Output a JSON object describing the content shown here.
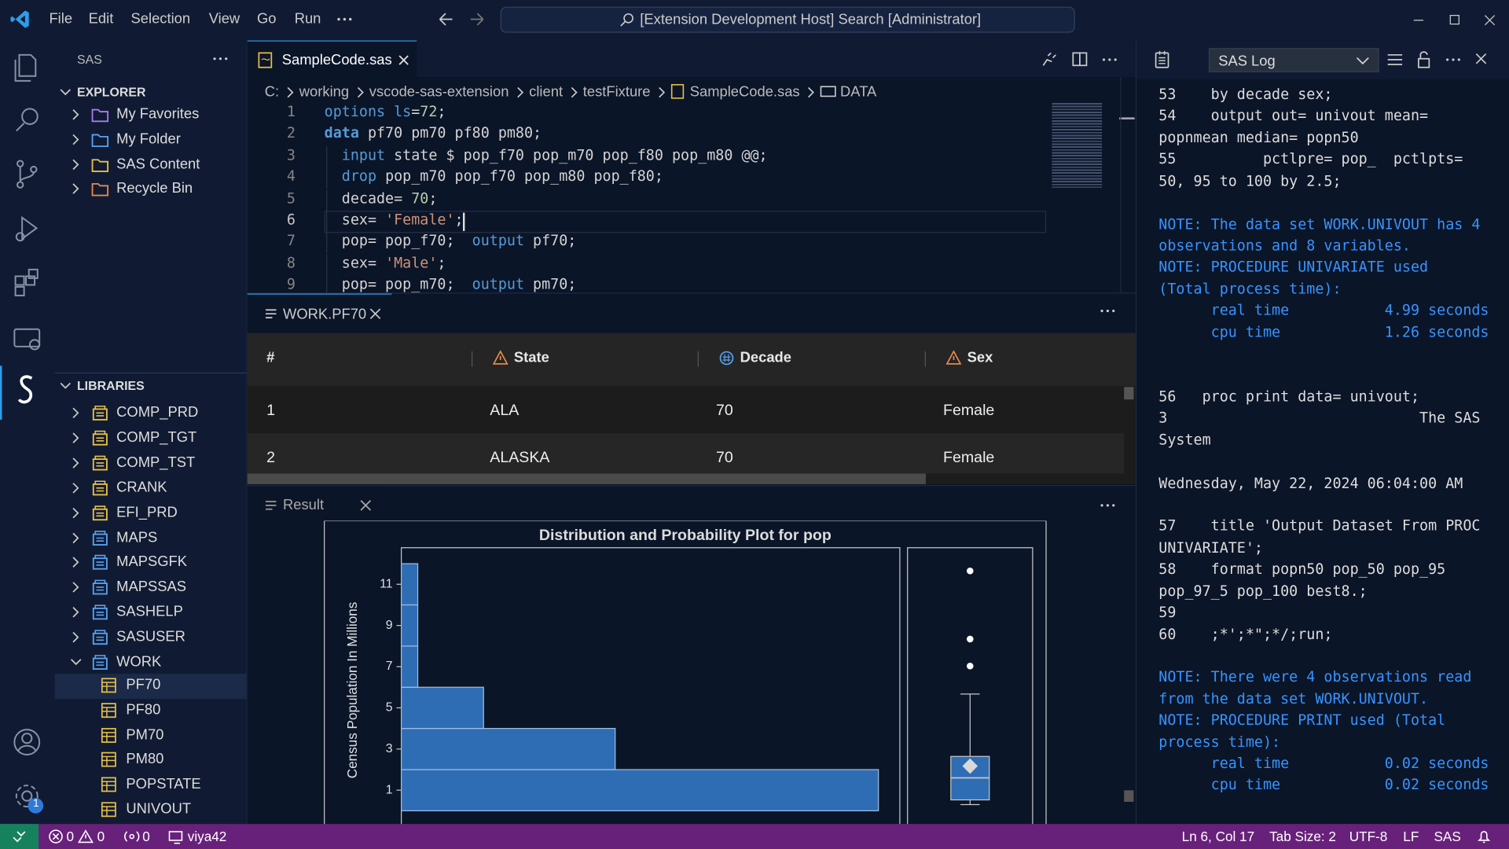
{
  "menu": [
    "File",
    "Edit",
    "Selection",
    "View",
    "Go",
    "Run"
  ],
  "search": "[Extension Development Host] Search [Administrator]",
  "sidebar": {
    "title": "SAS",
    "explorer": {
      "title": "EXPLORER",
      "items": [
        {
          "name": "My Favorites",
          "color": "#a67cf0"
        },
        {
          "name": "My Folder",
          "color": "#5aa2f0"
        },
        {
          "name": "SAS Content",
          "color": "#e8c04a"
        },
        {
          "name": "Recycle Bin",
          "color": "#e8884a"
        }
      ]
    },
    "libraries": {
      "title": "LIBRARIES",
      "items": [
        {
          "name": "COMP_PRD",
          "color": "#e8c04a"
        },
        {
          "name": "COMP_TGT",
          "color": "#e8c04a"
        },
        {
          "name": "COMP_TST",
          "color": "#e8c04a"
        },
        {
          "name": "CRANK",
          "color": "#e8c04a"
        },
        {
          "name": "EFI_PRD",
          "color": "#e8c04a"
        },
        {
          "name": "MAPS",
          "color": "#5aa2f0"
        },
        {
          "name": "MAPSGFK",
          "color": "#5aa2f0"
        },
        {
          "name": "MAPSSAS",
          "color": "#5aa2f0"
        },
        {
          "name": "SASHELP",
          "color": "#5aa2f0"
        },
        {
          "name": "SASUSER",
          "color": "#5aa2f0"
        }
      ],
      "work": {
        "name": "WORK",
        "color": "#5aa2f0",
        "tables": [
          "PF70",
          "PF80",
          "PM70",
          "PM80",
          "POPSTATE",
          "UNIVOUT"
        ]
      }
    }
  },
  "settings_badge": 1,
  "editor": {
    "tab": "SampleCode.sas",
    "breadcrumbs": [
      "C:",
      "working",
      "vscode-sas-extension",
      "client",
      "testFixture",
      "SampleCode.sas",
      "DATA"
    ],
    "active_line": 6,
    "lines": [
      {
        "n": 1,
        "tokens": [
          {
            "t": "options",
            "k": "keyword"
          },
          {
            "t": " ",
            "k": "text"
          },
          {
            "t": "ls",
            "k": "keyword"
          },
          {
            "t": "=",
            "k": "text"
          },
          {
            "t": "72",
            "k": "number"
          },
          {
            "t": ";",
            "k": "text"
          }
        ]
      },
      {
        "n": 2,
        "tokens": [
          {
            "t": "data",
            "k": "step"
          },
          {
            "t": " pf70 pm70 pf80 pm80;",
            "k": "text"
          }
        ]
      },
      {
        "n": 3,
        "tokens": [
          {
            "t": "  input",
            "k": "keyword"
          },
          {
            "t": " state $ pop_f70 pop_m70 pop_f80 pop_m80 @@;",
            "k": "text"
          }
        ]
      },
      {
        "n": 4,
        "tokens": [
          {
            "t": "  drop",
            "k": "keyword"
          },
          {
            "t": " pop_m70 pop_f70 pop_m80 pop_f80;",
            "k": "text"
          }
        ]
      },
      {
        "n": 5,
        "tokens": [
          {
            "t": "  decade= ",
            "k": "text"
          },
          {
            "t": "70",
            "k": "number"
          },
          {
            "t": ";",
            "k": "text"
          }
        ]
      },
      {
        "n": 6,
        "tokens": [
          {
            "t": "  sex= ",
            "k": "text"
          },
          {
            "t": "'Female'",
            "k": "string"
          },
          {
            "t": ";",
            "k": "text"
          }
        ]
      },
      {
        "n": 7,
        "tokens": [
          {
            "t": "  pop= pop_f70;  ",
            "k": "text"
          },
          {
            "t": "output",
            "k": "keyword"
          },
          {
            "t": " pf70;",
            "k": "text"
          }
        ]
      },
      {
        "n": 8,
        "tokens": [
          {
            "t": "  sex= ",
            "k": "text"
          },
          {
            "t": "'Male'",
            "k": "string"
          },
          {
            "t": ";",
            "k": "text"
          }
        ]
      },
      {
        "n": 9,
        "tokens": [
          {
            "t": "  pop= pop_m70;  ",
            "k": "text"
          },
          {
            "t": "output",
            "k": "keyword"
          },
          {
            "t": " pm70;",
            "k": "text"
          }
        ]
      }
    ]
  },
  "table": {
    "tab": "WORK.PF70",
    "columns": [
      {
        "name": "#",
        "type": "index"
      },
      {
        "name": "State",
        "type": "char"
      },
      {
        "name": "Decade",
        "type": "num"
      },
      {
        "name": "Sex",
        "type": "char"
      }
    ],
    "rows": [
      [
        1,
        "ALA",
        70,
        "Female"
      ],
      [
        2,
        "ALASKA",
        70,
        "Female"
      ]
    ]
  },
  "result": {
    "tab": "Result"
  },
  "chart_data": {
    "type": "histogram",
    "orientation": "horizontal",
    "title": "Distribution and Probability Plot for pop",
    "ylabel": "Census Population In Millions",
    "bins": [
      0,
      2,
      4,
      6,
      8,
      10,
      12
    ],
    "counts": [
      29,
      13,
      5,
      1,
      1,
      1
    ],
    "color": "#2e6db4",
    "ylim": [
      -0.5,
      12.8
    ],
    "yticks": [
      1,
      3,
      5,
      7,
      9,
      11
    ],
    "xlim": [
      0,
      30.3
    ],
    "box": {
      "whisker_low": 0.3,
      "q1": 0.53,
      "median": 1.6,
      "mean": 2.17,
      "q3": 2.64,
      "whisker_high": 5.67,
      "outliers": [
        7.03,
        8.34,
        11.65
      ],
      "color": "#2e6db4"
    }
  },
  "log": {
    "title": "SAS Log",
    "lines": [
      {
        "text": "53    by decade sex;",
        "kind": "source"
      },
      {
        "text": "54    output out= univout mean=",
        "kind": "source"
      },
      {
        "text": "popnmean median= popn50",
        "kind": "source"
      },
      {
        "text": "55          pctlpre= pop_  pctlpts=",
        "kind": "source"
      },
      {
        "text": "50, 95 to 100 by 2.5;",
        "kind": "source"
      },
      null,
      {
        "text": "NOTE: The data set WORK.UNIVOUT has 4",
        "kind": "note"
      },
      {
        "text": "observations and 8 variables.",
        "kind": "note"
      },
      {
        "text": "NOTE: PROCEDURE UNIVARIATE used",
        "kind": "note"
      },
      {
        "text": "(Total process time):",
        "kind": "note"
      },
      {
        "text": "      real time           4.99 seconds",
        "kind": "note"
      },
      {
        "text": "      cpu time            1.26 seconds",
        "kind": "note"
      },
      null,
      null,
      {
        "text": "56   proc print data= univout;",
        "kind": "source"
      },
      {
        "text": "3                             The SAS",
        "kind": "source"
      },
      {
        "text": "System",
        "kind": "source"
      },
      null,
      {
        "text": "Wednesday, May 22, 2024 06:04:00 AM",
        "kind": "source"
      },
      null,
      {
        "text": "57    title 'Output Dataset From PROC",
        "kind": "source"
      },
      {
        "text": "UNIVARIATE';",
        "kind": "source"
      },
      {
        "text": "58    format popn50 pop_50 pop_95",
        "kind": "source"
      },
      {
        "text": "pop_97_5 pop_100 best8.;",
        "kind": "source"
      },
      {
        "text": "59",
        "kind": "source"
      },
      {
        "text": "60    ;*';*\";*/;run;",
        "kind": "source"
      },
      null,
      {
        "text": "NOTE: There were 4 observations read",
        "kind": "note"
      },
      {
        "text": "from the data set WORK.UNIVOUT.",
        "kind": "note"
      },
      {
        "text": "NOTE: PROCEDURE PRINT used (Total",
        "kind": "note"
      },
      {
        "text": "process time):",
        "kind": "note"
      },
      {
        "text": "      real time           0.02 seconds",
        "kind": "note"
      },
      {
        "text": "      cpu time            0.02 seconds",
        "kind": "note"
      }
    ]
  },
  "status": {
    "errors": 0,
    "warnings": 0,
    "ports": 0,
    "remote": "viya42",
    "position": "Ln 6, Col 17",
    "tab_size": "Tab Size: 2",
    "encoding": "UTF-8",
    "eol": "LF",
    "language": "SAS"
  }
}
